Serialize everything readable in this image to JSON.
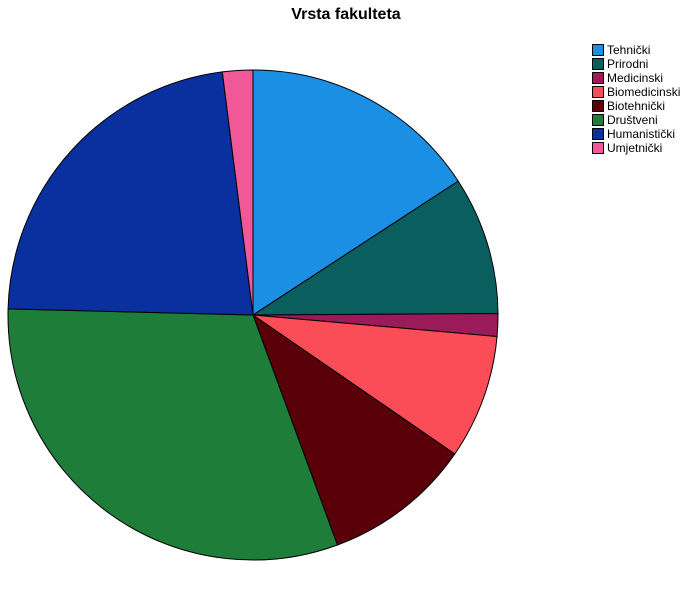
{
  "chart_data": {
    "type": "pie",
    "title": "Vrsta fakulteta",
    "legend_position": "right",
    "slices": [
      {
        "label": "Tehnički",
        "value": 15.8,
        "color": "#1a8fe3"
      },
      {
        "label": "Prirodni",
        "value": 9.1,
        "color": "#0b5e5e"
      },
      {
        "label": "Medicinski",
        "value": 1.5,
        "color": "#9b1a5a"
      },
      {
        "label": "Biomedicinski",
        "value": 8.2,
        "color": "#fa4d58"
      },
      {
        "label": "Biotehnički",
        "value": 9.8,
        "color": "#5a0008"
      },
      {
        "label": "Društveni",
        "value": 31.0,
        "color": "#1f7d3a"
      },
      {
        "label": "Humanistički",
        "value": 22.6,
        "color": "#0a2f9e"
      },
      {
        "label": "Umjetnički",
        "value": 2.0,
        "color": "#f05898"
      }
    ]
  }
}
